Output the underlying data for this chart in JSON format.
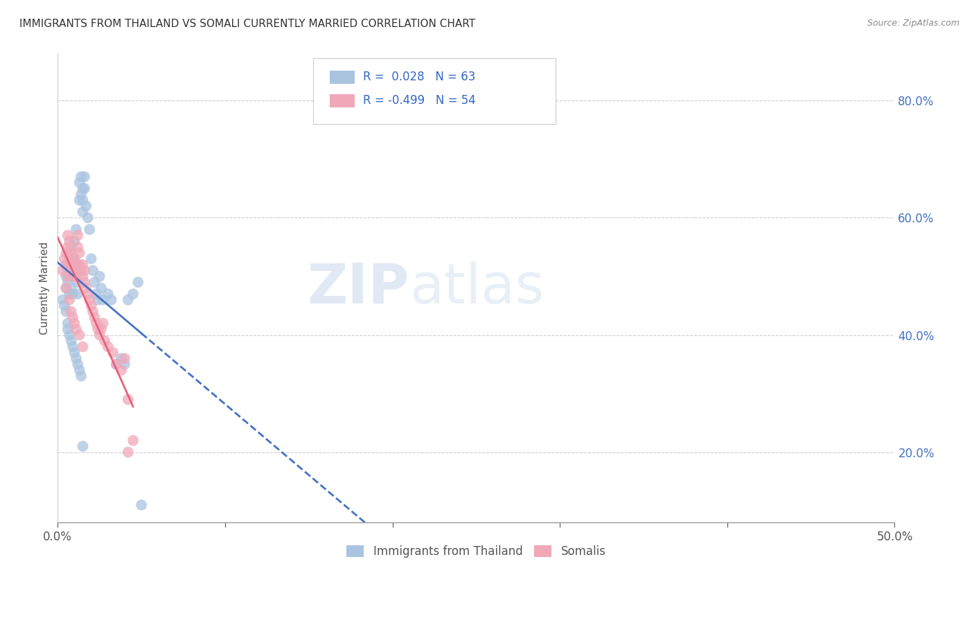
{
  "title": "IMMIGRANTS FROM THAILAND VS SOMALI CURRENTLY MARRIED CORRELATION CHART",
  "source": "Source: ZipAtlas.com",
  "ylabel": "Currently Married",
  "xlim": [
    0.0,
    0.5
  ],
  "ylim": [
    0.08,
    0.88
  ],
  "right_yticks": [
    0.2,
    0.4,
    0.6,
    0.8
  ],
  "legend_r_blue": " 0.028",
  "legend_n_blue": "63",
  "legend_r_pink": "-0.499",
  "legend_n_pink": "54",
  "blue_scatter_color": "#aac4e0",
  "pink_scatter_color": "#f0a8b8",
  "blue_line_color": "#4472c4",
  "pink_line_color": "#e8607a",
  "watermark": "ZIPatlas",
  "legend_label_blue": "Immigrants from Thailand",
  "legend_label_pink": "Somalis",
  "thailand_x": [
    0.005,
    0.005,
    0.005,
    0.006,
    0.006,
    0.007,
    0.007,
    0.007,
    0.008,
    0.008,
    0.008,
    0.009,
    0.009,
    0.01,
    0.01,
    0.011,
    0.011,
    0.012,
    0.012,
    0.012,
    0.013,
    0.013,
    0.014,
    0.014,
    0.015,
    0.015,
    0.015,
    0.016,
    0.016,
    0.017,
    0.018,
    0.019,
    0.02,
    0.021,
    0.022,
    0.023,
    0.024,
    0.025,
    0.026,
    0.027,
    0.03,
    0.032,
    0.035,
    0.038,
    0.04,
    0.042,
    0.045,
    0.048,
    0.003,
    0.004,
    0.005,
    0.006,
    0.006,
    0.007,
    0.008,
    0.009,
    0.01,
    0.011,
    0.012,
    0.013,
    0.014,
    0.015,
    0.05
  ],
  "thailand_y": [
    0.48,
    0.5,
    0.52,
    0.49,
    0.51,
    0.47,
    0.5,
    0.53,
    0.48,
    0.52,
    0.55,
    0.47,
    0.5,
    0.53,
    0.56,
    0.52,
    0.58,
    0.47,
    0.49,
    0.51,
    0.63,
    0.66,
    0.64,
    0.67,
    0.65,
    0.63,
    0.61,
    0.67,
    0.65,
    0.62,
    0.6,
    0.58,
    0.53,
    0.51,
    0.49,
    0.47,
    0.46,
    0.5,
    0.48,
    0.46,
    0.47,
    0.46,
    0.35,
    0.36,
    0.35,
    0.46,
    0.47,
    0.49,
    0.46,
    0.45,
    0.44,
    0.42,
    0.41,
    0.4,
    0.39,
    0.38,
    0.37,
    0.36,
    0.35,
    0.34,
    0.33,
    0.21,
    0.11
  ],
  "somali_x": [
    0.003,
    0.004,
    0.005,
    0.005,
    0.006,
    0.006,
    0.007,
    0.007,
    0.008,
    0.008,
    0.009,
    0.009,
    0.01,
    0.01,
    0.011,
    0.011,
    0.012,
    0.012,
    0.013,
    0.013,
    0.014,
    0.015,
    0.015,
    0.016,
    0.016,
    0.017,
    0.018,
    0.019,
    0.02,
    0.021,
    0.022,
    0.023,
    0.024,
    0.025,
    0.026,
    0.027,
    0.028,
    0.03,
    0.033,
    0.035,
    0.038,
    0.04,
    0.042,
    0.045,
    0.005,
    0.006,
    0.007,
    0.008,
    0.009,
    0.01,
    0.011,
    0.013,
    0.015,
    0.042
  ],
  "somali_y": [
    0.51,
    0.53,
    0.52,
    0.54,
    0.55,
    0.57,
    0.54,
    0.56,
    0.52,
    0.54,
    0.5,
    0.53,
    0.51,
    0.53,
    0.5,
    0.52,
    0.55,
    0.57,
    0.52,
    0.54,
    0.51,
    0.5,
    0.52,
    0.49,
    0.51,
    0.48,
    0.47,
    0.46,
    0.45,
    0.44,
    0.43,
    0.42,
    0.41,
    0.4,
    0.41,
    0.42,
    0.39,
    0.38,
    0.37,
    0.35,
    0.34,
    0.36,
    0.29,
    0.22,
    0.48,
    0.5,
    0.46,
    0.44,
    0.43,
    0.42,
    0.41,
    0.4,
    0.38,
    0.2
  ]
}
